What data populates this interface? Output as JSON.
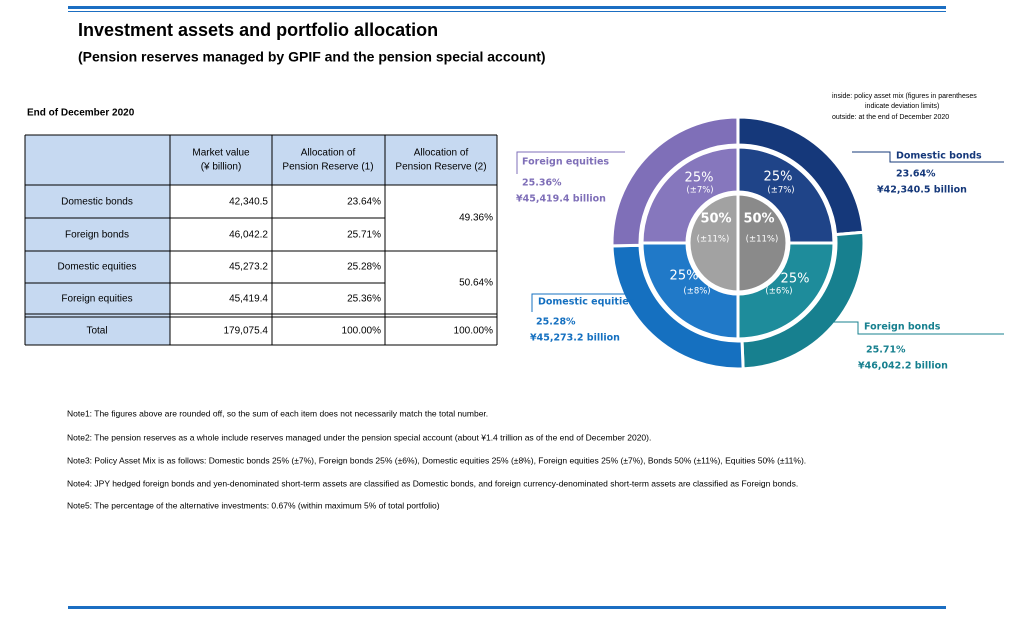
{
  "header": {
    "title": "Investment assets and portfolio allocation",
    "subtitle": "(Pension reserves managed by GPIF and the pension special account)"
  },
  "table": {
    "caption": "End of December 2020",
    "columns": [
      [
        "Market value",
        "(¥ billion)"
      ],
      [
        "Allocation of",
        "Pension Reserve (1)"
      ],
      [
        "Allocation of",
        "Pension Reserve (2)"
      ]
    ],
    "rows": [
      [
        "Domestic bonds",
        "42,340.5",
        "23.64%"
      ],
      [
        "Foreign bonds",
        "46,042.2",
        "25.71%"
      ],
      [
        "Domestic equities",
        "45,273.2",
        "25.28%"
      ],
      [
        "Foreign equities",
        "45,419.4",
        "25.36%"
      ]
    ],
    "groups": [
      "49.36%",
      "50.64%"
    ],
    "total": [
      "Total",
      "179,075.4",
      "100.00%",
      "100.00%"
    ]
  },
  "chart": {
    "legend": [
      "inside:  policy asset mix (figures in parentheses",
      "indicate deviation limits)",
      "outside: at the end of December 2020"
    ],
    "outer": [
      {
        "name": "Domestic bonds",
        "value": 23.64,
        "label": "23.64%",
        "amount": "¥42,340.5 billion",
        "color": "#15387a"
      },
      {
        "name": "Foreign bonds",
        "value": 25.71,
        "label": "25.71%",
        "amount": "¥46,042.2 billion",
        "color": "#17808f"
      },
      {
        "name": "Domestic equities",
        "value": 25.28,
        "label": "25.28%",
        "amount": "¥45,273.2 billion",
        "color": "#1570c0"
      },
      {
        "name": "Foreign equities",
        "value": 25.36,
        "label": "25.36%",
        "amount": "¥45,419.4 billion",
        "color": "#7f6fb8"
      }
    ],
    "inner": [
      {
        "value": 25,
        "label": "25%",
        "deviation": "(±7%)",
        "color": "#1f4488"
      },
      {
        "value": 25,
        "label": "25%",
        "deviation": "(±6%)",
        "color": "#1e8c9b"
      },
      {
        "value": 25,
        "label": "25%",
        "deviation": "(±8%)",
        "color": "#2079c8"
      },
      {
        "value": 25,
        "label": "25%",
        "deviation": "(±7%)",
        "color": "#8677bd"
      }
    ],
    "center": [
      {
        "value": 50,
        "label": "50%",
        "deviation": "(±11%)",
        "color": "#8a8a8a"
      },
      {
        "value": 50,
        "label": "50%",
        "deviation": "(±11%)",
        "color": "#a2a2a2"
      }
    ]
  },
  "notes": [
    "Note1: The figures above are rounded off, so the sum of each item does not necessarily match the total number.",
    "Note2: The pension reserves as a whole include reserves managed under the pension special account (about ¥1.4 trillion as of the end of December 2020).",
    "Note3: Policy Asset Mix is as follows: Domestic bonds 25% (±7%), Foreign bonds 25% (±6%), Domestic equities 25% (±8%), Foreign equities 25% (±7%), Bonds 50% (±11%), Equities 50% (±11%).",
    "Note4: JPY hedged foreign bonds and yen-denominated short-term assets are classified as Domestic bonds, and foreign currency-denominated short-term assets are classified as Foreign bonds.",
    "Note5: The percentage of the alternative investments: 0.67% (within maximum 5% of total portfolio)"
  ]
}
